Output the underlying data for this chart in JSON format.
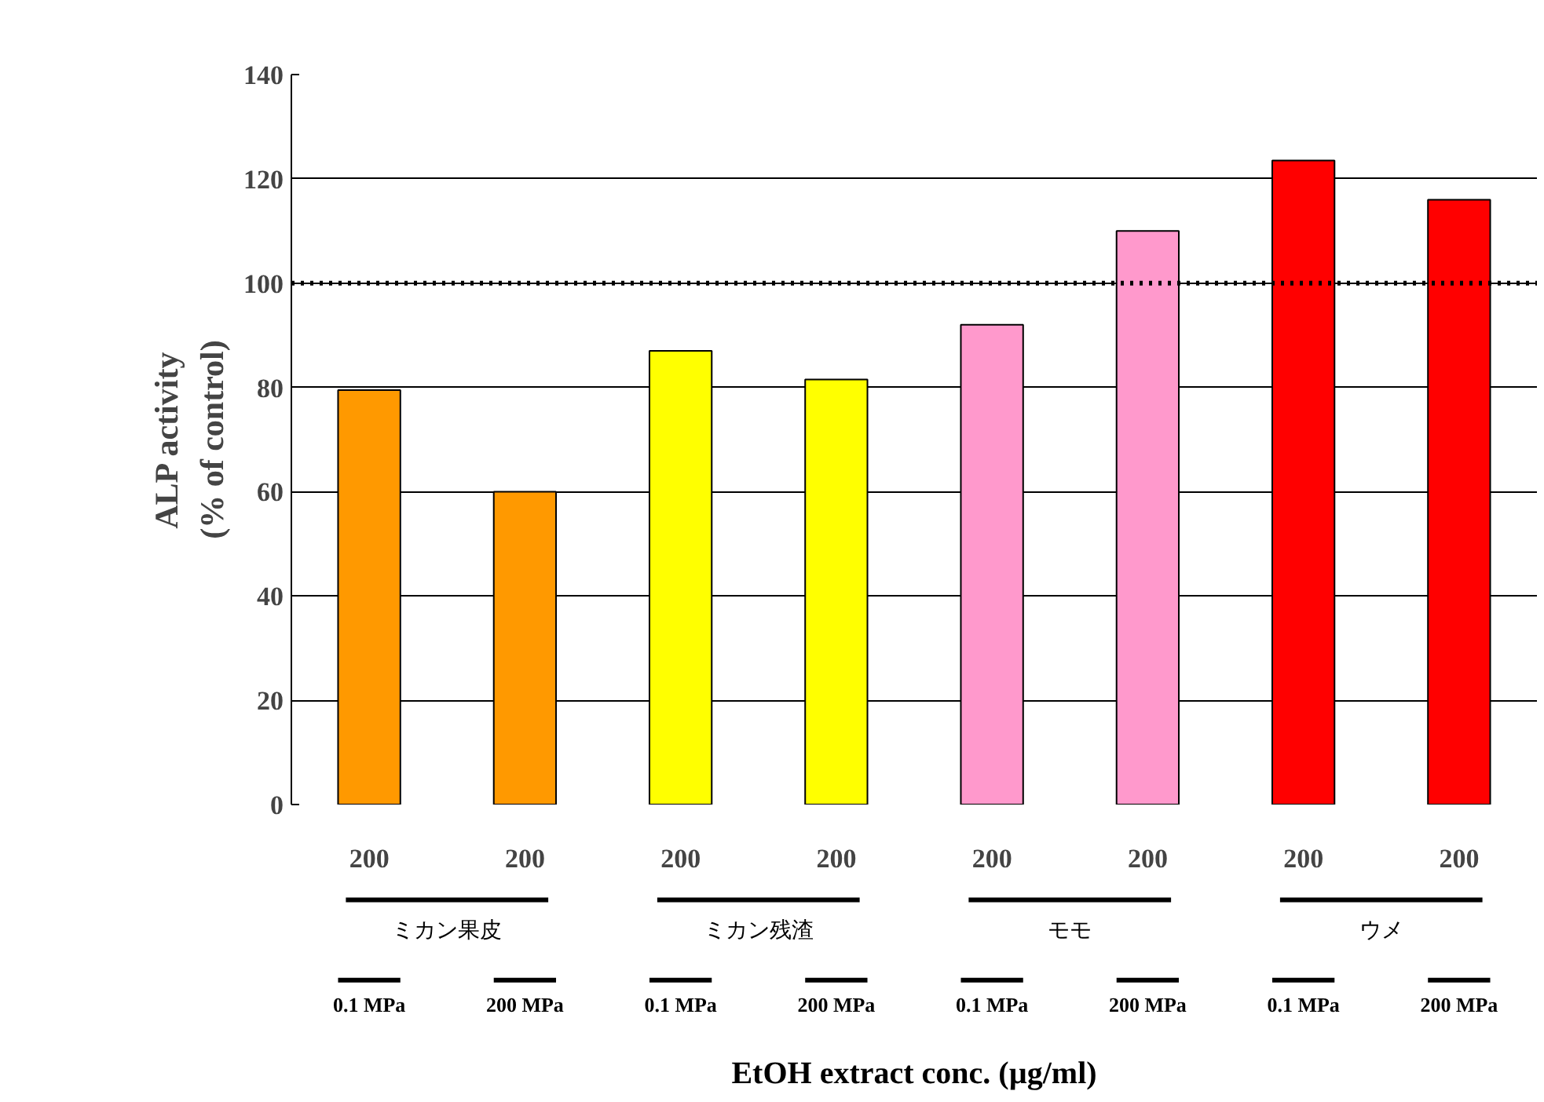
{
  "chart_data": {
    "type": "bar",
    "ylabel": "ALP activity\n(% of control)",
    "categories": [
      "200",
      "200",
      "200",
      "200",
      "200",
      "200",
      "200",
      "200"
    ],
    "values": [
      79.5,
      60,
      87,
      81.5,
      92,
      110,
      123.5,
      116
    ],
    "colors": [
      "#ff9900",
      "#ff9900",
      "#ffff00",
      "#ffff00",
      "#ff99cc",
      "#ff99cc",
      "#ff0000",
      "#ff0000"
    ],
    "ylim": [
      0,
      140
    ],
    "yticks": [
      0,
      20,
      40,
      60,
      80,
      100,
      120,
      140
    ],
    "grid": "y",
    "ref_lines": [
      {
        "axis": "y",
        "value": 100,
        "line_style": "dotted",
        "color": "#000000"
      }
    ],
    "annotations": [
      "ミカン果皮",
      "ミカン残渣",
      "モモ",
      "ウメ",
      "0.1 MPa",
      "200 MPa",
      "0.1 MPa",
      "200 MPa",
      "0.1 MPa",
      "200 MPa",
      "0.1 MPa",
      "200 MPa",
      "EtOH extract conc. (µg/ml)"
    ]
  }
}
